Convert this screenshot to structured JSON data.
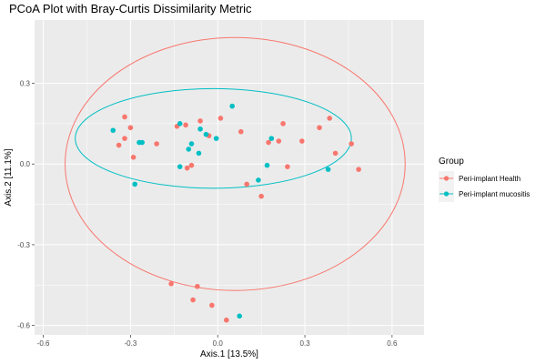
{
  "chart_data": {
    "type": "scatter",
    "title": "PCoA Plot with Bray-Curtis Dissimilarity Metric",
    "xlabel": "Axis.1   [13.5%]",
    "ylabel": "Axis.2   [11.1%]",
    "xlim": [
      -0.63,
      0.71
    ],
    "ylim": [
      -0.635,
      0.535
    ],
    "x_ticks": [
      {
        "value": -0.6,
        "label": "-0.6"
      },
      {
        "value": -0.3,
        "label": "-0.3"
      },
      {
        "value": 0.0,
        "label": "0.0"
      },
      {
        "value": 0.3,
        "label": "0.3"
      },
      {
        "value": 0.6,
        "label": "0.6"
      }
    ],
    "y_ticks": [
      {
        "value": 0.3,
        "label": "0.3"
      },
      {
        "value": 0.0,
        "label": "0.0"
      },
      {
        "value": -0.3,
        "label": "-0.3"
      },
      {
        "value": -0.6,
        "label": "-0.6"
      }
    ],
    "grid": true,
    "background": "#ebebeb",
    "legend": {
      "title": "Group",
      "position": "right"
    },
    "series": [
      {
        "name": "Peri-implant Health",
        "color": "#f8766d",
        "points": [
          [
            -0.32,
            0.175
          ],
          [
            -0.34,
            0.07
          ],
          [
            -0.32,
            0.095
          ],
          [
            -0.3,
            0.135
          ],
          [
            -0.29,
            0.025
          ],
          [
            -0.21,
            0.075
          ],
          [
            -0.14,
            0.14
          ],
          [
            -0.11,
            0.145
          ],
          [
            -0.06,
            0.16
          ],
          [
            -0.03,
            0.105
          ],
          [
            0.01,
            0.17
          ],
          [
            0.08,
            0.12
          ],
          [
            0.1,
            -0.075
          ],
          [
            0.15,
            -0.12
          ],
          [
            0.175,
            0.08
          ],
          [
            0.21,
            0.085
          ],
          [
            0.225,
            0.15
          ],
          [
            0.24,
            -0.01
          ],
          [
            0.29,
            0.085
          ],
          [
            0.35,
            0.135
          ],
          [
            0.385,
            0.17
          ],
          [
            0.405,
            0.04
          ],
          [
            0.46,
            0.075
          ],
          [
            0.485,
            -0.02
          ],
          [
            -0.105,
            -0.015
          ],
          [
            -0.09,
            -0.005
          ],
          [
            -0.16,
            -0.445
          ],
          [
            -0.07,
            -0.455
          ],
          [
            -0.085,
            -0.505
          ],
          [
            -0.02,
            -0.525
          ],
          [
            0.03,
            -0.58
          ]
        ]
      },
      {
        "name": "Peri-implant mucositis",
        "color": "#00bfc4",
        "points": [
          [
            -0.36,
            0.125
          ],
          [
            -0.27,
            0.08
          ],
          [
            -0.26,
            0.08
          ],
          [
            -0.13,
            0.15
          ],
          [
            -0.1,
            0.055
          ],
          [
            -0.09,
            0.075
          ],
          [
            -0.06,
            0.13
          ],
          [
            -0.04,
            0.11
          ],
          [
            -0.005,
            0.095
          ],
          [
            0.05,
            0.215
          ],
          [
            -0.13,
            -0.01
          ],
          [
            -0.065,
            0.04
          ],
          [
            -0.285,
            -0.075
          ],
          [
            0.14,
            -0.06
          ],
          [
            0.17,
            -0.005
          ],
          [
            0.185,
            0.095
          ],
          [
            0.38,
            -0.02
          ],
          [
            0.075,
            -0.565
          ]
        ]
      }
    ],
    "ellipses": [
      {
        "series": "Peri-implant Health",
        "cx": 0.06,
        "cy": 0.0,
        "rx": 0.585,
        "ry": 0.47
      },
      {
        "series": "Peri-implant mucositis",
        "cx": -0.015,
        "cy": 0.095,
        "rx": 0.475,
        "ry": 0.185
      }
    ]
  }
}
